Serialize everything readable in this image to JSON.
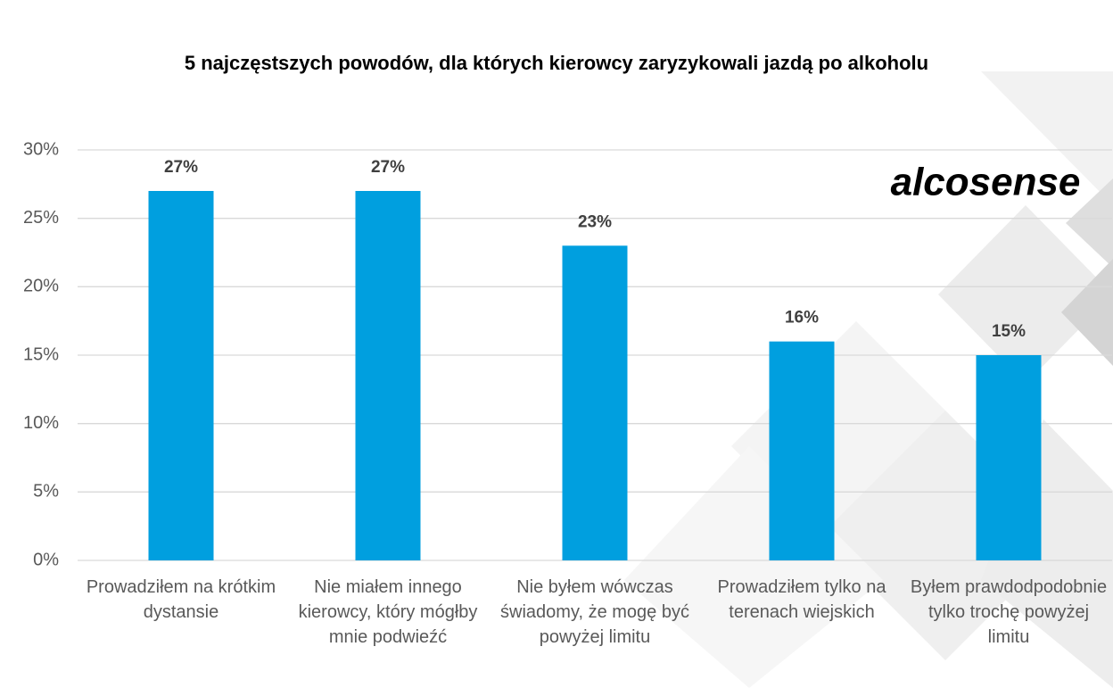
{
  "chart_data": {
    "type": "bar",
    "title": "5 najczęstszych powodów, dla których kierowcy zaryzykowali jazdą po alkoholu",
    "brand": "alcosense",
    "categories": [
      "Prowadziłem na krótkim dystansie",
      "Nie miałem innego kierowcy, który mógłby mnie podwieźć",
      "Nie byłem wówczas świadomy, że mogę być powyżej limitu",
      "Prowadziłem tylko na terenach wiejskich",
      "Byłem prawdodpodobnie tylko trochę powyżej limitu"
    ],
    "values": [
      27,
      27,
      23,
      16,
      15
    ],
    "value_labels": [
      "27%",
      "27%",
      "23%",
      "16%",
      "15%"
    ],
    "color": "#009fdf",
    "ylim": [
      0,
      30
    ],
    "yticks": [
      {
        "value": 0,
        "label": "0%"
      },
      {
        "value": 5,
        "label": "5%"
      },
      {
        "value": 10,
        "label": "10%"
      },
      {
        "value": 15,
        "label": "15%"
      },
      {
        "value": 20,
        "label": "20%"
      },
      {
        "value": 25,
        "label": "25%"
      },
      {
        "value": 30,
        "label": "30%"
      }
    ],
    "grid": true
  }
}
